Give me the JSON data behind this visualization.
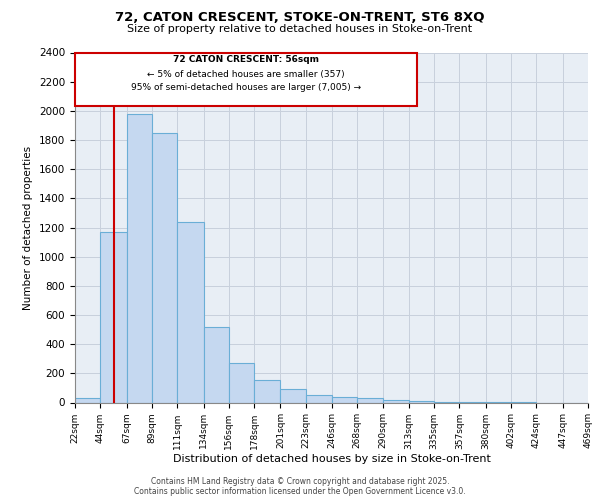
{
  "title1": "72, CATON CRESCENT, STOKE-ON-TRENT, ST6 8XQ",
  "title2": "Size of property relative to detached houses in Stoke-on-Trent",
  "xlabel": "Distribution of detached houses by size in Stoke-on-Trent",
  "ylabel": "Number of detached properties",
  "annotation_title": "72 CATON CRESCENT: 56sqm",
  "annotation_line1": "← 5% of detached houses are smaller (357)",
  "annotation_line2": "95% of semi-detached houses are larger (7,005) →",
  "footer1": "Contains HM Land Registry data © Crown copyright and database right 2025.",
  "footer2": "Contains public sector information licensed under the Open Government Licence v3.0.",
  "bar_edges": [
    22,
    44,
    67,
    89,
    111,
    134,
    156,
    178,
    201,
    223,
    246,
    268,
    290,
    313,
    335,
    357,
    380,
    402,
    424,
    447,
    469
  ],
  "bar_heights": [
    30,
    1170,
    1980,
    1850,
    1240,
    520,
    270,
    155,
    90,
    50,
    40,
    30,
    20,
    10,
    5,
    3,
    2,
    1,
    0,
    0
  ],
  "bar_color": "#c5d8f0",
  "bar_edge_color": "#6aaed6",
  "vline_x": 56,
  "vline_color": "#cc0000",
  "box_edge_color": "#cc0000",
  "ylim": [
    0,
    2400
  ],
  "yticks": [
    0,
    200,
    400,
    600,
    800,
    1000,
    1200,
    1400,
    1600,
    1800,
    2000,
    2200,
    2400
  ],
  "grid_color": "#c8d0dc",
  "bg_color": "#e8eef5"
}
